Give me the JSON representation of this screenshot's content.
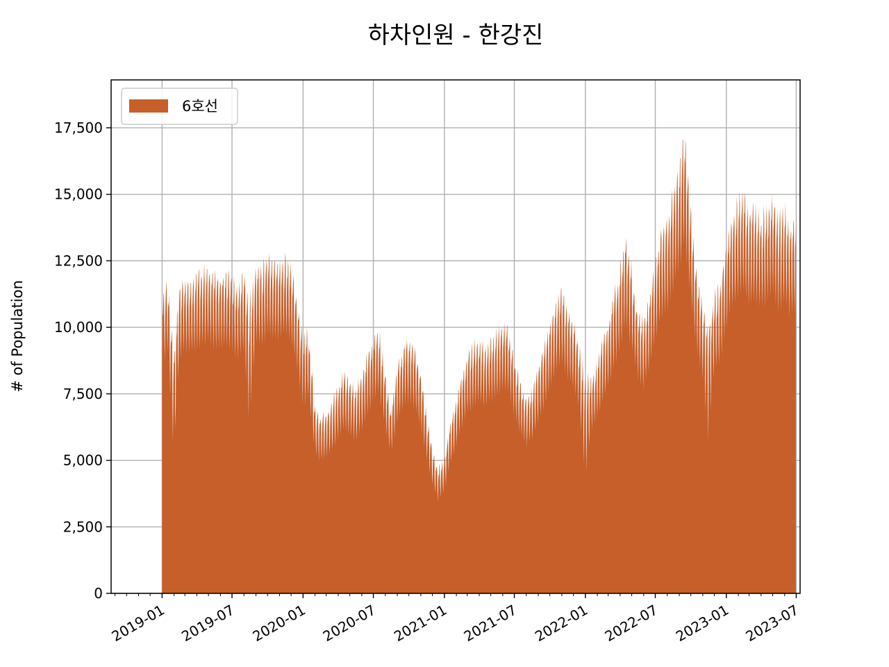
{
  "chart_data": {
    "type": "area",
    "title": "하차인원 - 한강진",
    "xlabel": "",
    "ylabel": "# of Population",
    "ylim": [
      0,
      19300
    ],
    "xlim": [
      "2018-08-22",
      "2023-07-11"
    ],
    "yticks": [
      0,
      2500,
      5000,
      7500,
      10000,
      12500,
      15000,
      17500
    ],
    "ytick_labels": [
      "0",
      "2,500",
      "5,000",
      "7,500",
      "10,000",
      "12,500",
      "15,000",
      "17,500"
    ],
    "xticks": [
      "2019-01-01",
      "2019-07-01",
      "2020-01-01",
      "2020-07-01",
      "2021-01-01",
      "2021-07-01",
      "2022-01-01",
      "2022-07-01",
      "2023-01-01",
      "2023-07-01"
    ],
    "xtick_labels": [
      "2019-01",
      "2019-07",
      "2020-01",
      "2020-07",
      "2021-01",
      "2021-07",
      "2022-01",
      "2022-07",
      "2023-01",
      "2023-07"
    ],
    "grid": true,
    "legend_position": "top-left",
    "series": [
      {
        "name": "6호선",
        "color": "#c65f2a",
        "x": [
          "2019-01-01",
          "2019-01-15",
          "2019-02-01",
          "2019-02-15",
          "2019-03-01",
          "2019-03-15",
          "2019-04-01",
          "2019-04-15",
          "2019-05-01",
          "2019-05-15",
          "2019-06-01",
          "2019-06-15",
          "2019-07-01",
          "2019-07-15",
          "2019-08-01",
          "2019-08-15",
          "2019-09-01",
          "2019-09-15",
          "2019-10-01",
          "2019-10-15",
          "2019-11-01",
          "2019-11-15",
          "2019-12-01",
          "2019-12-15",
          "2020-01-01",
          "2020-01-15",
          "2020-02-01",
          "2020-02-15",
          "2020-03-01",
          "2020-03-15",
          "2020-04-01",
          "2020-04-15",
          "2020-05-01",
          "2020-05-15",
          "2020-06-01",
          "2020-06-15",
          "2020-07-01",
          "2020-07-15",
          "2020-08-01",
          "2020-08-15",
          "2020-09-01",
          "2020-09-15",
          "2020-10-01",
          "2020-10-15",
          "2020-11-01",
          "2020-11-15",
          "2020-12-01",
          "2020-12-15",
          "2021-01-01",
          "2021-01-15",
          "2021-02-01",
          "2021-02-15",
          "2021-03-01",
          "2021-03-15",
          "2021-04-01",
          "2021-04-15",
          "2021-05-01",
          "2021-05-15",
          "2021-06-01",
          "2021-06-15",
          "2021-07-01",
          "2021-07-15",
          "2021-08-01",
          "2021-08-15",
          "2021-09-01",
          "2021-09-15",
          "2021-10-01",
          "2021-10-15",
          "2021-11-01",
          "2021-11-15",
          "2021-12-01",
          "2021-12-15",
          "2022-01-01",
          "2022-01-15",
          "2022-02-01",
          "2022-02-15",
          "2022-03-01",
          "2022-03-15",
          "2022-04-01",
          "2022-04-15",
          "2022-05-01",
          "2022-05-15",
          "2022-06-01",
          "2022-06-15",
          "2022-07-01",
          "2022-07-15",
          "2022-08-01",
          "2022-08-15",
          "2022-09-01",
          "2022-09-15",
          "2022-10-01",
          "2022-10-15",
          "2022-11-01",
          "2022-11-15",
          "2022-12-01",
          "2022-12-15",
          "2023-01-01",
          "2023-01-15",
          "2023-02-01",
          "2023-02-15",
          "2023-03-01",
          "2023-03-15",
          "2023-04-01",
          "2023-04-15",
          "2023-05-01",
          "2023-05-15",
          "2023-06-01",
          "2023-06-15",
          "2023-06-30"
        ],
        "peaks": [
          11500,
          12000,
          9500,
          11800,
          12200,
          12100,
          12300,
          12400,
          12500,
          12300,
          12200,
          12400,
          12100,
          11800,
          12300,
          11500,
          12600,
          12400,
          13000,
          12800,
          12700,
          12900,
          12500,
          11500,
          9800,
          10200,
          7200,
          6800,
          7000,
          7300,
          8000,
          8500,
          8200,
          7800,
          8400,
          9200,
          9800,
          10200,
          8500,
          7000,
          8800,
          9500,
          9800,
          9500,
          8500,
          7000,
          5500,
          4800,
          5200,
          6500,
          7500,
          8500,
          9200,
          9500,
          9800,
          9500,
          9800,
          10000,
          10500,
          10300,
          9000,
          8200,
          7500,
          7800,
          8800,
          9500,
          10500,
          11200,
          11800,
          11000,
          10500,
          9500,
          8500,
          8200,
          9000,
          9800,
          10500,
          11500,
          12500,
          13800,
          12500,
          11000,
          10500,
          11500,
          12800,
          14000,
          14500,
          15500,
          16500,
          17800,
          14800,
          12500,
          11000,
          10500,
          11500,
          11800,
          13500,
          14500,
          15200,
          15500,
          14800,
          15000,
          14500,
          14800,
          15300,
          14500,
          14800,
          14200,
          14600
        ],
        "troughs": [
          7200,
          7500,
          3000,
          7400,
          7600,
          7500,
          7700,
          7800,
          7900,
          7700,
          7600,
          7800,
          7500,
          7300,
          7600,
          3500,
          7900,
          7700,
          8200,
          8000,
          7900,
          8100,
          7800,
          7000,
          5500,
          5800,
          4200,
          4000,
          4100,
          4300,
          4700,
          5000,
          4800,
          4600,
          5000,
          5500,
          5900,
          6100,
          5000,
          4200,
          5200,
          5700,
          5900,
          5700,
          5000,
          4200,
          3300,
          2800,
          3100,
          3900,
          4500,
          5100,
          5500,
          5700,
          5900,
          5700,
          5900,
          6000,
          6300,
          6200,
          5400,
          4900,
          4500,
          4700,
          5300,
          5700,
          6300,
          6700,
          7100,
          6600,
          6300,
          5700,
          2200,
          4900,
          5400,
          5900,
          6300,
          6900,
          7500,
          8300,
          7500,
          6600,
          6300,
          6900,
          7700,
          8400,
          8700,
          9300,
          9900,
          10700,
          8900,
          7500,
          6600,
          3500,
          6900,
          7100,
          8100,
          8700,
          9100,
          9300,
          8900,
          9000,
          8700,
          8900,
          9200,
          8700,
          8900,
          8500,
          8800
        ]
      }
    ]
  }
}
